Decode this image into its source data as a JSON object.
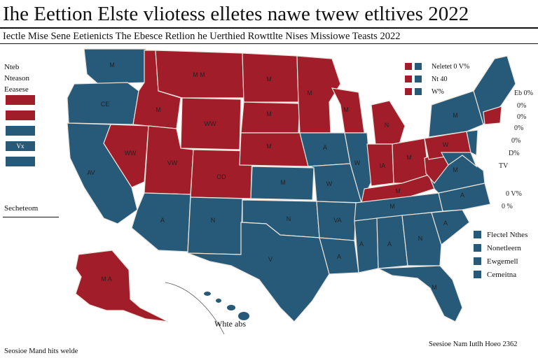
{
  "title": "Ihe Eettion Elste vliotess elletes nawe twew etltives 2022",
  "subtitle": "Iectle Mise Sene Eetienicts The Ebesce Retlion he Uerthied Rowttlte Nises Missiowe Teasts 2022",
  "legend_left": {
    "labels": [
      "Nteb",
      "Nteason",
      "Eeasese"
    ],
    "swatches": [
      {
        "color": "#a21d2a",
        "text": ""
      },
      {
        "color": "#a21d2a",
        "text": ""
      },
      {
        "color": "#275a78",
        "text": ""
      },
      {
        "color": "#275a78",
        "text": "Vx"
      },
      {
        "color": "#275a78",
        "text": ""
      }
    ],
    "bottom": "Secheteom"
  },
  "legend_top": {
    "rows": [
      {
        "red": "#a21d2a",
        "blue": "#275a78",
        "label": "Neletet 0 V%"
      },
      {
        "red": "#a21d2a",
        "blue": "#275a78",
        "label": "Nt 40"
      },
      {
        "red": "#a21d2a",
        "blue": "#275a78",
        "label": "W%"
      }
    ]
  },
  "legend_right": {
    "rows": [
      {
        "color": "#275a78",
        "label": "Flectel Nthes"
      },
      {
        "color": "#275a78",
        "label": "Nonetleern"
      },
      {
        "color": "#275a78",
        "label": "Ewgemell"
      },
      {
        "color": "#275a78",
        "label": "Cemeitna"
      }
    ]
  },
  "ne_percents": [
    "Eb 0%",
    "0%",
    "0%",
    "0%",
    "0%",
    "D%",
    "TV",
    "0 V%",
    "0 %"
  ],
  "hawaii_label": "Whte abs",
  "note_bottom_left": "Seosioe Mand hits welde",
  "note_bottom_right": "Seesioe Nam Iutlh Hoeo 2362",
  "states": {
    "wa": "M",
    "or": "CE",
    "ca": "AV",
    "nv": "WW",
    "id": "M",
    "mt": "M M",
    "wy": "WW",
    "ut": "VW",
    "co": "OD",
    "az": "A",
    "nm": "N",
    "nd": "M",
    "sd": "M",
    "ne": "M",
    "ks": "M",
    "ok": "N",
    "tx": "V",
    "mn": "M",
    "ia": "A",
    "mo": "W",
    "ar": "VA",
    "la": "A",
    "wi": "M",
    "il": "W",
    "mi": "N",
    "in": "IA",
    "oh": "M",
    "ky": "M",
    "tn": "M",
    "ms": "A",
    "al": "A",
    "ga": "N",
    "fl": "M",
    "sc": "A",
    "nc": "A",
    "va": "M",
    "pa": "W",
    "ny": "M",
    "ak": "M A"
  },
  "colors": {
    "red": "#a21d2a",
    "blue": "#275a78",
    "water": "#ffffff"
  }
}
